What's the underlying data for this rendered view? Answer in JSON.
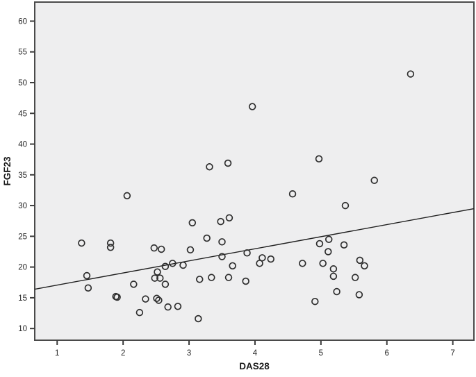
{
  "chart_data": {
    "type": "scatter",
    "title": "",
    "xlabel": "DAS28",
    "ylabel": "FGF23",
    "x_ticks": [
      1,
      2,
      3,
      4,
      5,
      6,
      7
    ],
    "y_ticks": [
      10,
      15,
      20,
      25,
      30,
      35,
      40,
      45,
      50,
      55,
      60
    ],
    "xlim": [
      0.66,
      7.32
    ],
    "ylim": [
      8.1,
      63.1
    ],
    "grid": false,
    "legend": false,
    "marker": "open-circle",
    "points": [
      [
        1.37,
        23.9
      ],
      [
        1.45,
        18.6
      ],
      [
        1.47,
        16.6
      ],
      [
        1.81,
        23.9
      ],
      [
        1.81,
        23.2
      ],
      [
        1.89,
        15.2
      ],
      [
        1.91,
        15.1
      ],
      [
        2.06,
        31.6
      ],
      [
        2.16,
        17.2
      ],
      [
        2.25,
        12.6
      ],
      [
        2.34,
        14.8
      ],
      [
        2.47,
        23.1
      ],
      [
        2.48,
        18.2
      ],
      [
        2.51,
        14.9
      ],
      [
        2.52,
        19.2
      ],
      [
        2.54,
        14.6
      ],
      [
        2.56,
        18.2
      ],
      [
        2.58,
        22.9
      ],
      [
        2.64,
        20.1
      ],
      [
        2.64,
        17.2
      ],
      [
        2.68,
        13.5
      ],
      [
        2.75,
        20.6
      ],
      [
        2.83,
        13.6
      ],
      [
        2.91,
        20.3
      ],
      [
        3.02,
        22.8
      ],
      [
        3.05,
        27.2
      ],
      [
        3.14,
        11.6
      ],
      [
        3.16,
        18.0
      ],
      [
        3.27,
        24.7
      ],
      [
        3.31,
        36.3
      ],
      [
        3.34,
        18.3
      ],
      [
        3.48,
        27.4
      ],
      [
        3.5,
        24.1
      ],
      [
        3.5,
        21.7
      ],
      [
        3.59,
        36.9
      ],
      [
        3.6,
        18.3
      ],
      [
        3.61,
        28.0
      ],
      [
        3.66,
        20.2
      ],
      [
        3.86,
        17.7
      ],
      [
        3.88,
        22.3
      ],
      [
        3.96,
        46.1
      ],
      [
        4.07,
        20.6
      ],
      [
        4.11,
        21.5
      ],
      [
        4.24,
        21.3
      ],
      [
        4.57,
        31.9
      ],
      [
        4.72,
        20.6
      ],
      [
        4.91,
        14.4
      ],
      [
        4.97,
        37.6
      ],
      [
        4.98,
        23.8
      ],
      [
        5.03,
        20.6
      ],
      [
        5.11,
        22.5
      ],
      [
        5.12,
        24.5
      ],
      [
        5.19,
        19.7
      ],
      [
        5.19,
        18.5
      ],
      [
        5.24,
        16.0
      ],
      [
        5.35,
        23.6
      ],
      [
        5.37,
        30.0
      ],
      [
        5.52,
        18.3
      ],
      [
        5.58,
        15.5
      ],
      [
        5.59,
        21.1
      ],
      [
        5.66,
        20.2
      ],
      [
        5.81,
        34.1
      ],
      [
        6.36,
        51.4
      ]
    ],
    "fit_line": {
      "x1": 0.66,
      "y1": 16.4,
      "x2": 7.32,
      "y2": 29.5
    }
  },
  "colors": {
    "plot_background": "#eeeeef",
    "frame": "#4a4a4a",
    "tick": "#3c3c3c",
    "point_stroke": "#2e2e2e",
    "fit_line": "#1f1f1f",
    "page_background": "#ffffff"
  }
}
